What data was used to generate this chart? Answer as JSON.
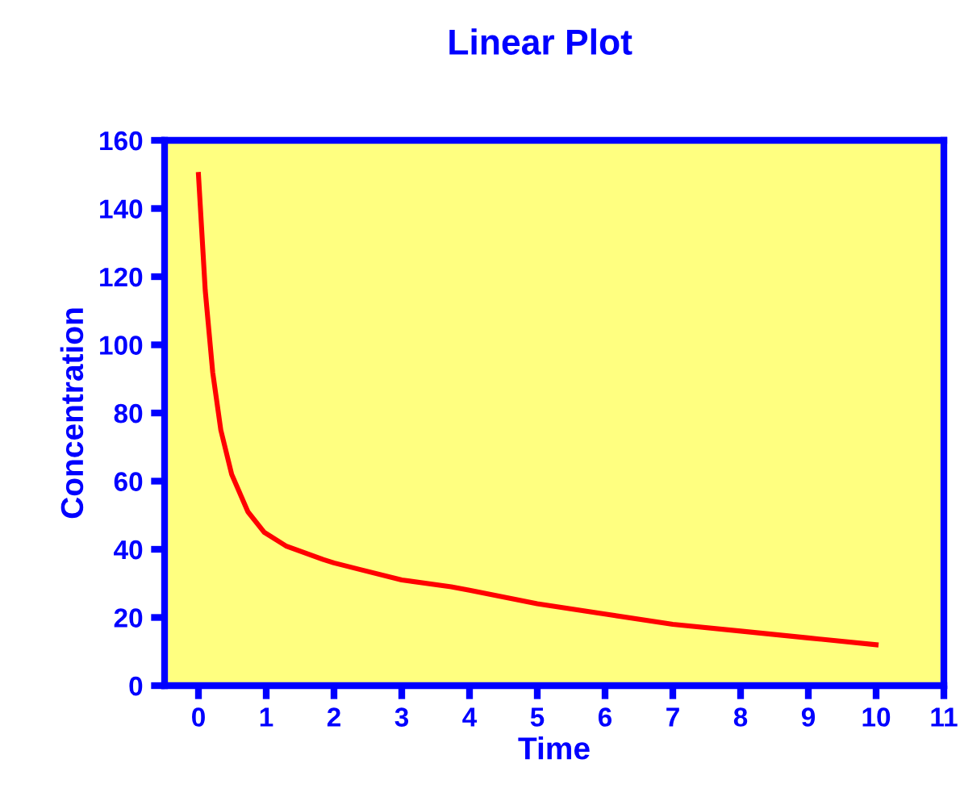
{
  "chart_data": {
    "type": "line",
    "title": "Linear Plot",
    "xlabel": "Time",
    "ylabel": "Concentration",
    "xlim": [
      -0.5,
      11
    ],
    "xticks": [
      0,
      1,
      2,
      3,
      4,
      5,
      6,
      7,
      8,
      9,
      10,
      11
    ],
    "ylim": [
      0,
      160
    ],
    "yticks": [
      0,
      20,
      40,
      60,
      80,
      100,
      120,
      140,
      160
    ],
    "grid": false,
    "marker": "none",
    "line_style": "solid",
    "series": [
      {
        "color": "#ff0000",
        "x": [
          0,
          0.1,
          0.21,
          0.33,
          0.49,
          0.73,
          0.97,
          1.29,
          1.84,
          2,
          2.4,
          3,
          3.73,
          4,
          5,
          6,
          7,
          8,
          9,
          10
        ],
        "values": [
          150,
          116,
          92,
          75,
          62,
          51,
          45,
          41,
          37,
          36,
          34,
          31,
          29,
          28,
          24,
          21,
          18,
          16,
          14,
          12
        ]
      }
    ]
  }
}
